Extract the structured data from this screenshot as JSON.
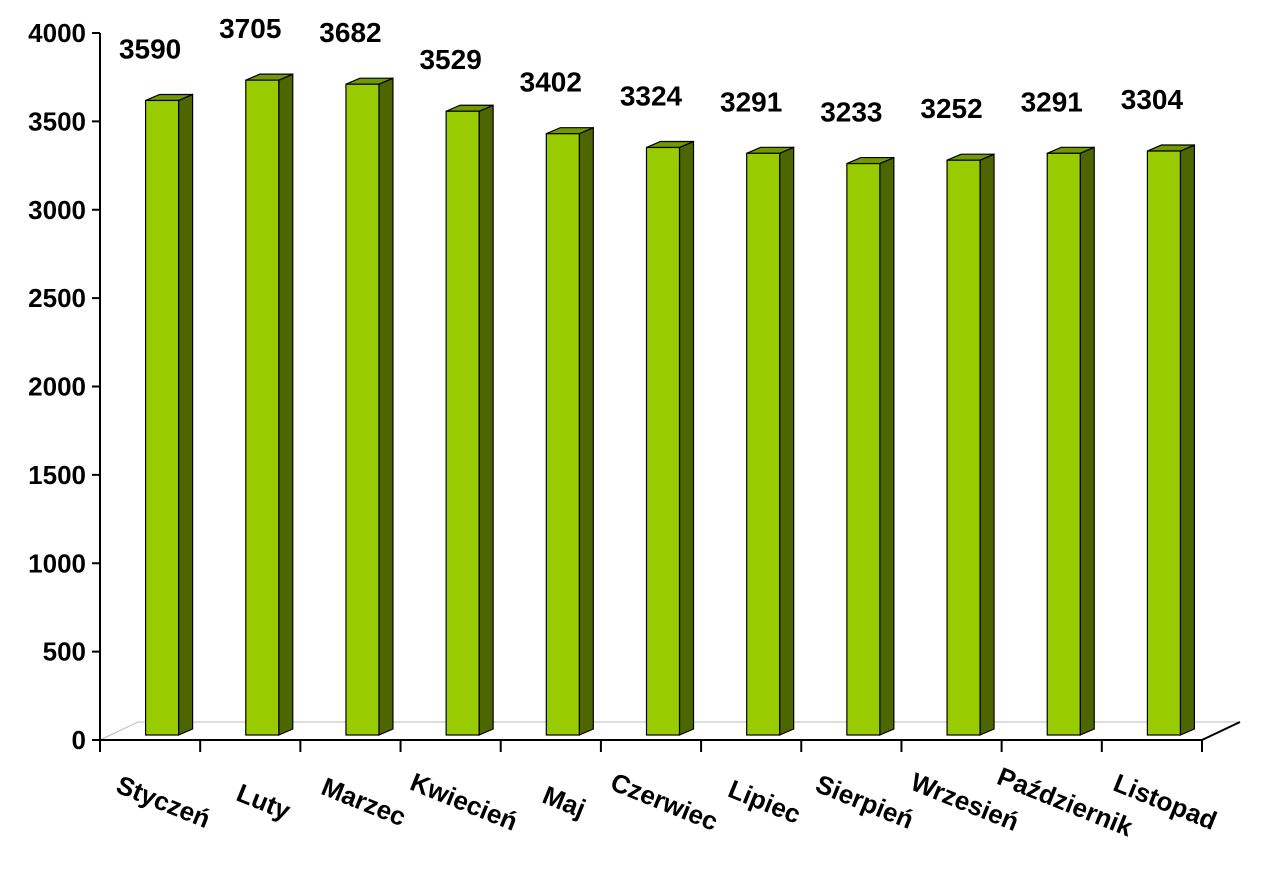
{
  "chart_data": {
    "type": "bar",
    "categories": [
      "Styczeń",
      "Luty",
      "Marzec",
      "Kwiecień",
      "Maj",
      "Czerwiec",
      "Lipiec",
      "Sierpień",
      "Wrzesień",
      "Październik",
      "Listopad"
    ],
    "values": [
      3590,
      3705,
      3682,
      3529,
      3402,
      3324,
      3291,
      3233,
      3252,
      3291,
      3304
    ],
    "data_labels": [
      "3590",
      "3705",
      "3682",
      "3529",
      "3402",
      "3324",
      "3291",
      "3233",
      "3252",
      "3291",
      "3304"
    ],
    "yticks": [
      "0",
      "500",
      "1000",
      "1500",
      "2000",
      "2500",
      "3000",
      "3500",
      "4000"
    ],
    "ylim": [
      0,
      4000
    ],
    "title": "",
    "xlabel": "",
    "ylabel": "",
    "grid": false,
    "legend": "none",
    "bar_style": "3d",
    "colors": {
      "front": "#99cc00",
      "side": "#4d6600",
      "top": "#739900",
      "outline": "#000000"
    }
  }
}
